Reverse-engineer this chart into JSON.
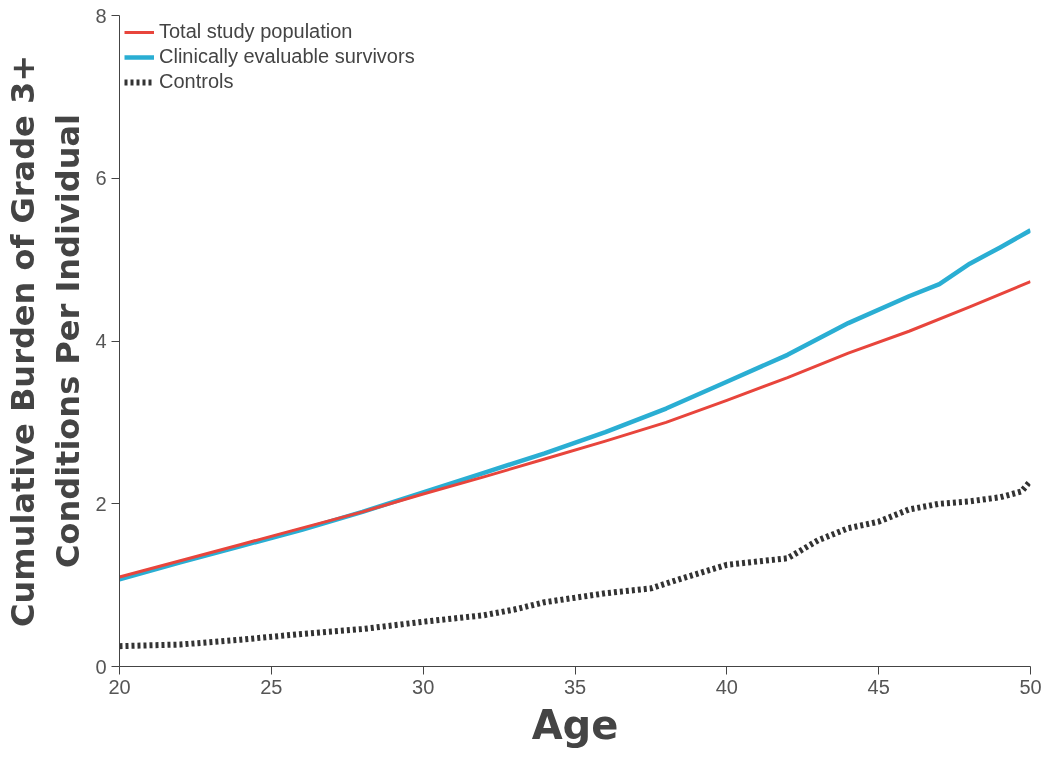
{
  "chart_data": {
    "type": "line",
    "xlabel": "Age",
    "ylabel": "Cumulative Burden of Grade 3+\nConditions Per Individual",
    "xlim": [
      20,
      50
    ],
    "ylim": [
      0,
      8
    ],
    "xticks": [
      20,
      25,
      30,
      35,
      40,
      45,
      50
    ],
    "yticks": [
      0,
      2,
      4,
      6,
      8
    ],
    "grid": false,
    "legend": "top left",
    "series": [
      {
        "name": "Total study population",
        "color": "#e8453c",
        "line_style": "solid",
        "x": [
          20,
          22,
          24,
          26,
          28,
          30,
          32,
          34,
          36,
          38,
          40,
          42,
          44,
          46,
          48,
          50
        ],
        "values": [
          1.1,
          1.3,
          1.5,
          1.7,
          1.9,
          2.12,
          2.33,
          2.55,
          2.77,
          3.0,
          3.27,
          3.55,
          3.85,
          4.12,
          4.42,
          4.73
        ]
      },
      {
        "name": "Clinically evaluable survivors",
        "color": "#2aaed3",
        "line_style": "solid",
        "x": [
          20,
          22,
          24,
          26,
          28,
          30,
          32,
          34,
          36,
          38,
          40,
          42,
          44,
          46,
          47,
          48,
          49,
          50
        ],
        "values": [
          1.07,
          1.28,
          1.48,
          1.68,
          1.9,
          2.14,
          2.38,
          2.62,
          2.88,
          3.17,
          3.5,
          3.83,
          4.22,
          4.55,
          4.7,
          4.95,
          5.15,
          5.36
        ]
      },
      {
        "name": "Controls",
        "color": "#333333",
        "line_style": "dotted",
        "x": [
          20,
          22,
          24,
          26,
          28,
          30,
          32,
          33,
          34,
          36,
          37.5,
          38.5,
          40,
          42,
          43,
          44,
          45,
          46,
          47,
          48,
          49,
          49.7,
          50
        ],
        "values": [
          0.25,
          0.27,
          0.33,
          0.4,
          0.46,
          0.55,
          0.63,
          0.7,
          0.79,
          0.9,
          0.96,
          1.08,
          1.25,
          1.33,
          1.55,
          1.7,
          1.78,
          1.93,
          2.0,
          2.03,
          2.08,
          2.15,
          2.28
        ]
      }
    ]
  }
}
